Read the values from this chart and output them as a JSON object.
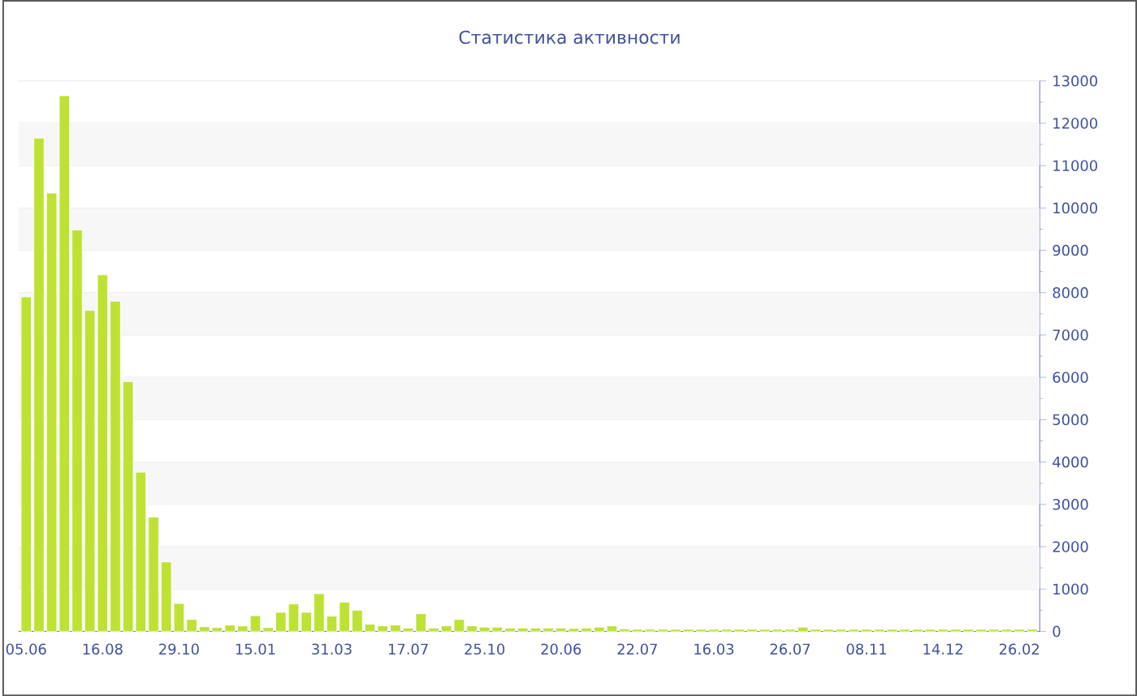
{
  "chart_data": {
    "type": "bar",
    "title": "Статистика активности",
    "categories": [
      "05.06",
      null,
      null,
      null,
      null,
      null,
      "16.08",
      null,
      null,
      null,
      null,
      null,
      "29.10",
      null,
      null,
      null,
      null,
      null,
      "15.01",
      null,
      null,
      null,
      null,
      null,
      "31.03",
      null,
      null,
      null,
      null,
      null,
      "17.07",
      null,
      null,
      null,
      null,
      null,
      "25.10",
      null,
      null,
      null,
      null,
      null,
      "20.06",
      null,
      null,
      null,
      null,
      null,
      "22.07",
      null,
      null,
      null,
      null,
      null,
      "16.03",
      null,
      null,
      null,
      null,
      null,
      "26.07",
      null,
      null,
      null,
      null,
      null,
      "08.11",
      null,
      null,
      null,
      null,
      null,
      "14.12",
      null,
      null,
      null,
      null,
      null,
      "26.02",
      null
    ],
    "values": [
      7900,
      11650,
      10350,
      12650,
      9480,
      7580,
      8420,
      7800,
      5900,
      3760,
      2700,
      1640,
      660,
      280,
      110,
      90,
      150,
      130,
      370,
      90,
      450,
      650,
      450,
      890,
      360,
      690,
      500,
      170,
      130,
      150,
      80,
      420,
      80,
      130,
      280,
      130,
      100,
      100,
      80,
      80,
      80,
      80,
      80,
      70,
      80,
      100,
      130,
      60,
      50,
      50,
      50,
      50,
      50,
      50,
      50,
      50,
      50,
      50,
      50,
      50,
      50,
      100,
      50,
      50,
      50,
      50,
      50,
      50,
      50,
      50,
      50,
      50,
      50,
      50,
      50,
      50,
      50,
      50,
      50,
      50
    ],
    "color": "#bde234",
    "ylim": [
      0,
      13000
    ],
    "yticks": [
      0,
      1000,
      2000,
      3000,
      4000,
      5000,
      6000,
      7000,
      8000,
      9000,
      10000,
      11000,
      12000,
      13000
    ],
    "grid": "y"
  }
}
